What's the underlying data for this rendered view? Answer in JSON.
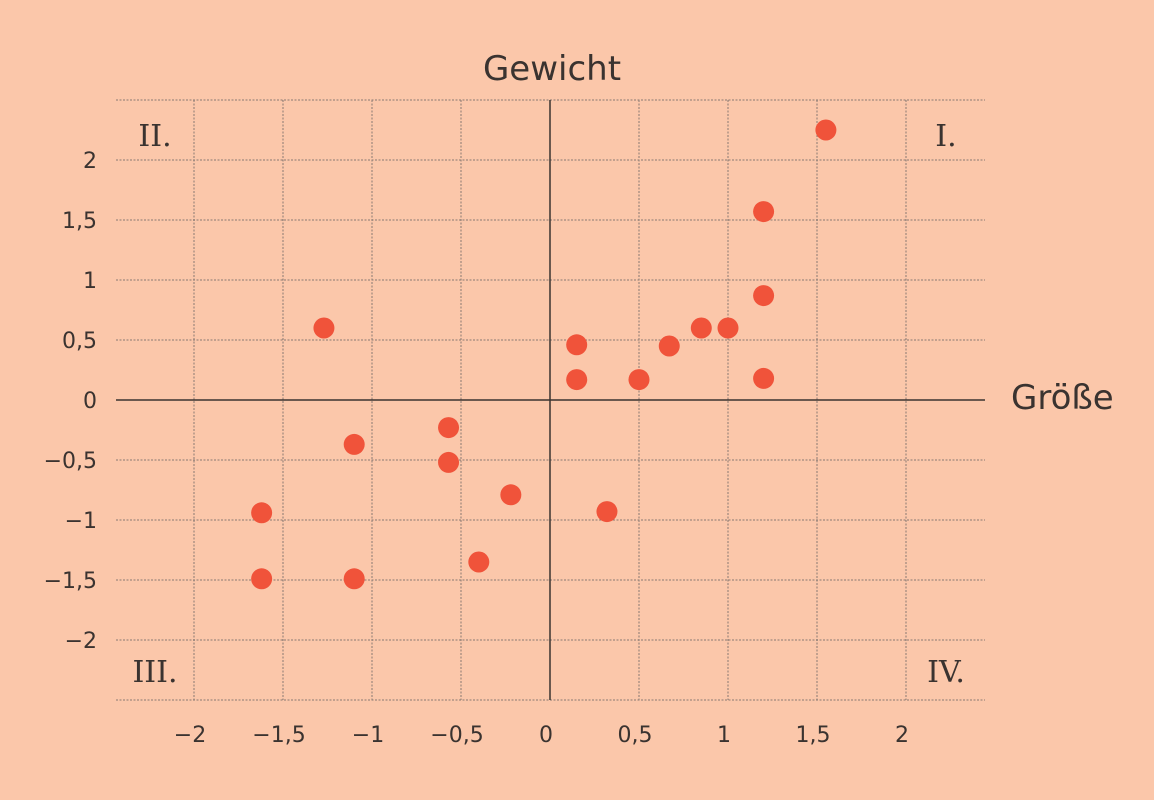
{
  "chart_data": {
    "type": "scatter",
    "ylabel": "Gewicht",
    "xlabel": "Größe",
    "xlim": [
      -2.5,
      2.5
    ],
    "ylim": [
      -2.5,
      2.5
    ],
    "x_ticks": [
      -2,
      -1.5,
      -1,
      -0.5,
      0,
      0.5,
      1,
      1.5,
      2
    ],
    "x_tick_labels": [
      "−2",
      "−1,5",
      "−1",
      "−0,5",
      "0",
      "0,5",
      "1",
      "1,5",
      "2"
    ],
    "y_ticks": [
      2,
      1.5,
      1,
      0.5,
      0,
      -0.5,
      -1,
      -1.5,
      -2
    ],
    "y_tick_labels": [
      "2",
      "1,5",
      "1",
      "0,5",
      "0",
      "−0,5",
      "−1",
      "−1,5",
      "−2"
    ],
    "grid": true,
    "quadrants": {
      "I": "I.",
      "II": "II.",
      "III": "III.",
      "IV": "IV."
    },
    "point_color": "#f0533a",
    "points": [
      {
        "x": 1.55,
        "y": 2.25
      },
      {
        "x": 1.2,
        "y": 1.57
      },
      {
        "x": 1.2,
        "y": 0.87
      },
      {
        "x": 1.2,
        "y": 0.18
      },
      {
        "x": 1.0,
        "y": 0.6
      },
      {
        "x": 0.85,
        "y": 0.6
      },
      {
        "x": 0.67,
        "y": 0.45
      },
      {
        "x": 0.5,
        "y": 0.17
      },
      {
        "x": 0.15,
        "y": 0.46
      },
      {
        "x": 0.15,
        "y": 0.17
      },
      {
        "x": 0.32,
        "y": -0.93
      },
      {
        "x": -0.22,
        "y": -0.79
      },
      {
        "x": -0.4,
        "y": -1.35
      },
      {
        "x": -0.57,
        "y": -0.23
      },
      {
        "x": -0.57,
        "y": -0.52
      },
      {
        "x": -1.1,
        "y": -0.37
      },
      {
        "x": -1.1,
        "y": -1.49
      },
      {
        "x": -1.27,
        "y": 0.6
      },
      {
        "x": -1.62,
        "y": -0.94
      },
      {
        "x": -1.62,
        "y": -1.49
      }
    ]
  },
  "colors": {
    "background": "#fbc7aa",
    "grid": "#8a7a72",
    "axis": "#3a3330",
    "text": "#3a3330"
  }
}
